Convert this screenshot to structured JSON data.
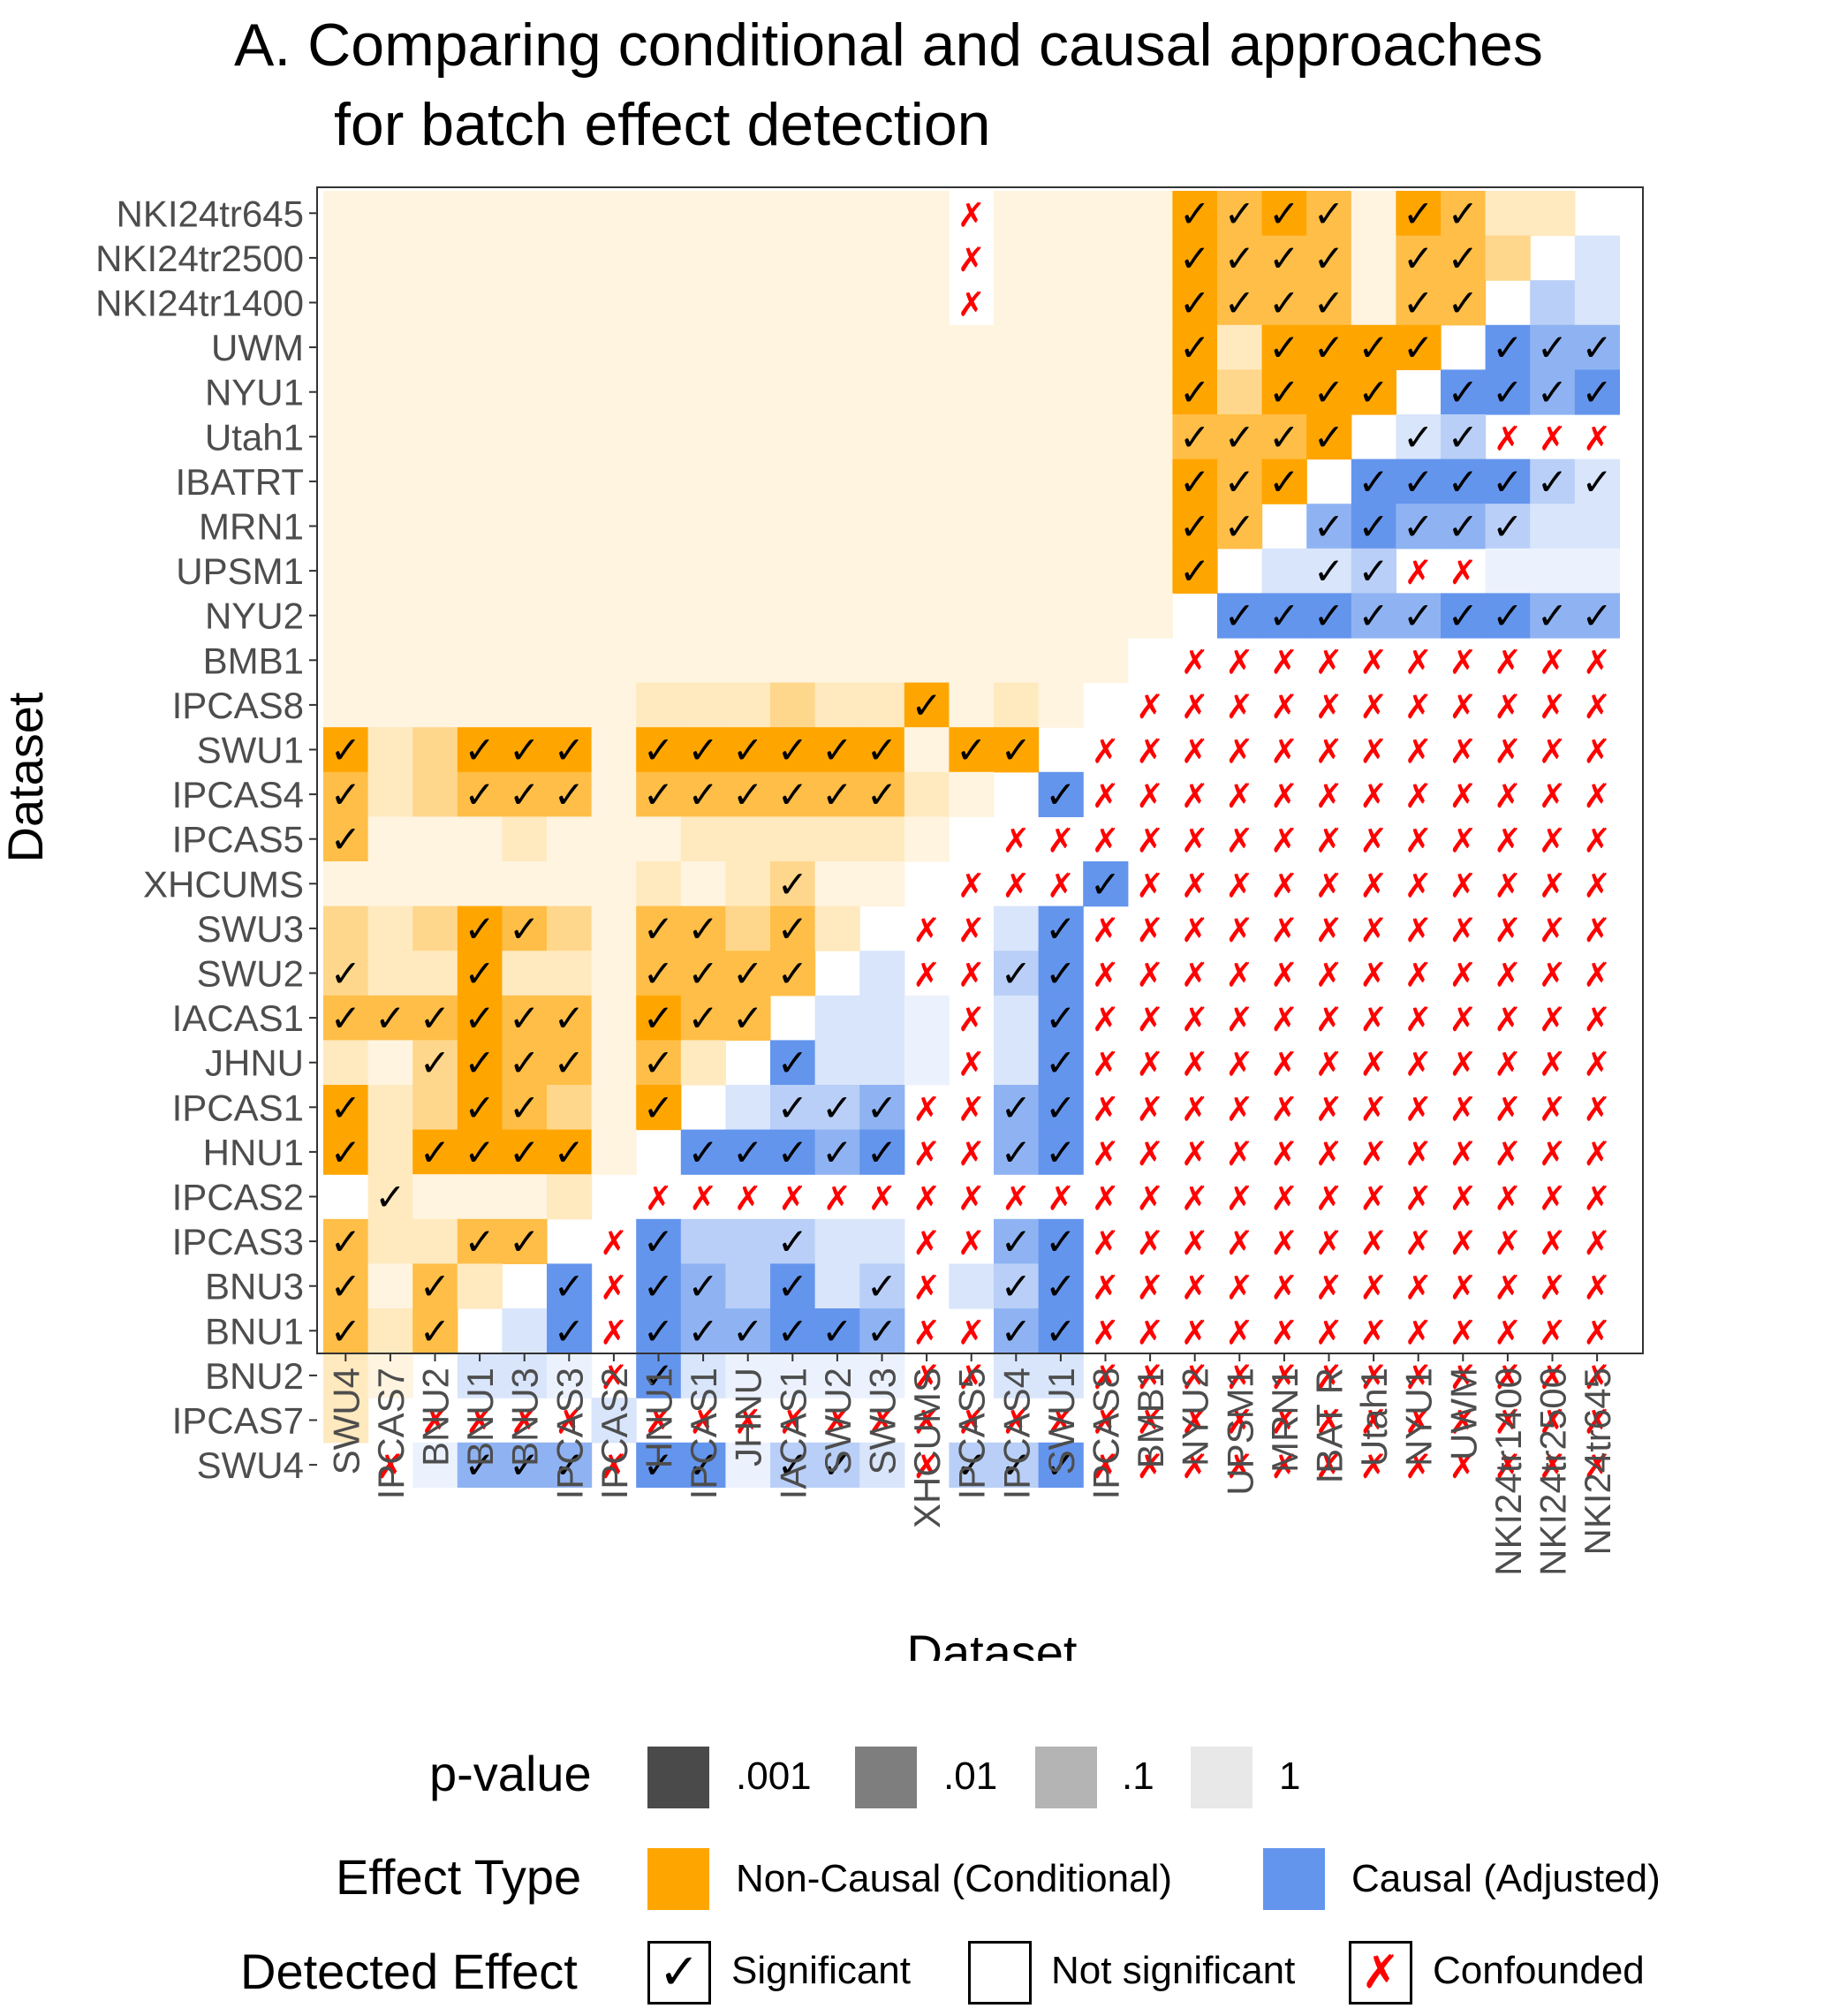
{
  "title": {
    "line1": "A. Comparing conditional and causal approaches",
    "line2": "for batch effect detection"
  },
  "chart_data": {
    "type": "heatmap",
    "xlabel": "Dataset",
    "ylabel": "Dataset",
    "x": [
      "SWU4",
      "IPCAS7",
      "BNU2",
      "BNU1",
      "BNU3",
      "IPCAS3",
      "IPCAS2",
      "HNU1",
      "IPCAS1",
      "JHNU",
      "IACAS1",
      "SWU2",
      "SWU3",
      "XHCUMS",
      "IPCAS5",
      "IPCAS4",
      "SWU1",
      "IPCAS8",
      "BMB1",
      "NYU2",
      "UPSM1",
      "MRN1",
      "IBAT R",
      "Utah1",
      "NYU1",
      "UWM",
      "NKI24tr1400",
      "NKI24tr2500",
      "NKI24tr645"
    ],
    "y": [
      "NKI24tr645",
      "NKI24tr2500",
      "NKI24tr1400",
      "UWM",
      "NYU1",
      "Utah1",
      "IBATRT",
      "MRN1",
      "UPSM1",
      "NYU2",
      "BMB1",
      "IPCAS8",
      "SWU1",
      "IPCAS4",
      "IPCAS5",
      "XHCUMS",
      "SWU3",
      "SWU2",
      "IACAS1",
      "JHNU",
      "IPCAS1",
      "HNU1",
      "IPCAS2",
      "IPCAS3",
      "BNU3",
      "BNU1",
      "BNU2",
      "IPCAS7",
      "SWU4"
    ],
    "grid_note": "Rows listed top to bottom; columns left to right. Cell codes: 'O'/'B' = orange (Non-Causal, Conditional) / blue (Causal, Adjusted) effect type; digit 0-4 = shade from p-value (4 darkest, p<=.001; 0 palest); trailing 'v' = significant check mark; 'x' = confounded mark; '-' = no fill.",
    "cells": [
      [
        "O0",
        "O0",
        "O0",
        "O0",
        "O0",
        "O0",
        "O0",
        "O0",
        "O0",
        "O0",
        "O0",
        "O0",
        "O0",
        "O0",
        "-x",
        "O0",
        "O0",
        "O0",
        "O0",
        "O4v",
        "O3v",
        "O4v",
        "O3v",
        "O0",
        "O4v",
        "O3v",
        "O1",
        "O1",
        "-"
      ],
      [
        "O0",
        "O0",
        "O0",
        "O0",
        "O0",
        "O0",
        "O0",
        "O0",
        "O0",
        "O0",
        "O0",
        "O0",
        "O0",
        "O0",
        "-x",
        "O0",
        "O0",
        "O0",
        "O0",
        "O4v",
        "O3v",
        "O3v",
        "O3v",
        "O0",
        "O3v",
        "O3v",
        "O2",
        "-",
        "B1"
      ],
      [
        "O0",
        "O0",
        "O0",
        "O0",
        "O0",
        "O0",
        "O0",
        "O0",
        "O0",
        "O0",
        "O0",
        "O0",
        "O0",
        "O0",
        "-x",
        "O0",
        "O0",
        "O0",
        "O0",
        "O4v",
        "O3v",
        "O3v",
        "O3v",
        "O0",
        "O3v",
        "O3v",
        "-",
        "B2",
        "B1"
      ],
      [
        "O0",
        "O0",
        "O0",
        "O0",
        "O0",
        "O0",
        "O0",
        "O0",
        "O0",
        "O0",
        "O0",
        "O0",
        "O0",
        "O0",
        "O0",
        "O0",
        "O0",
        "O0",
        "O0",
        "O4v",
        "O1",
        "O4v",
        "O4v",
        "O4v",
        "O4v",
        "-",
        "B4v",
        "B3v",
        "B3v"
      ],
      [
        "O0",
        "O0",
        "O0",
        "O0",
        "O0",
        "O0",
        "O0",
        "O0",
        "O0",
        "O0",
        "O0",
        "O0",
        "O0",
        "O0",
        "O0",
        "O0",
        "O0",
        "O0",
        "O0",
        "O4v",
        "O2",
        "O4v",
        "O4v",
        "O4v",
        "-",
        "B4v",
        "B4v",
        "B3v",
        "B4v"
      ],
      [
        "O0",
        "O0",
        "O0",
        "O0",
        "O0",
        "O0",
        "O0",
        "O0",
        "O0",
        "O0",
        "O0",
        "O0",
        "O0",
        "O0",
        "O0",
        "O0",
        "O0",
        "O0",
        "O0",
        "O3v",
        "O3v",
        "O3v",
        "O4v",
        "-",
        "B1v",
        "B2v",
        "-x",
        "-x",
        "-x"
      ],
      [
        "O0",
        "O0",
        "O0",
        "O0",
        "O0",
        "O0",
        "O0",
        "O0",
        "O0",
        "O0",
        "O0",
        "O0",
        "O0",
        "O0",
        "O0",
        "O0",
        "O0",
        "O0",
        "O0",
        "O4v",
        "O3v",
        "O4v",
        "-",
        "B4v",
        "B4v",
        "B4v",
        "B4v",
        "B2v",
        "B1v"
      ],
      [
        "O0",
        "O0",
        "O0",
        "O0",
        "O0",
        "O0",
        "O0",
        "O0",
        "O0",
        "O0",
        "O0",
        "O0",
        "O0",
        "O0",
        "O0",
        "O0",
        "O0",
        "O0",
        "O0",
        "O4v",
        "O3v",
        "-",
        "B3v",
        "B4v",
        "B3v",
        "B3v",
        "B2v",
        "B1",
        "B1"
      ],
      [
        "O0",
        "O0",
        "O0",
        "O0",
        "O0",
        "O0",
        "O0",
        "O0",
        "O0",
        "O0",
        "O0",
        "O0",
        "O0",
        "O0",
        "O0",
        "O0",
        "O0",
        "O0",
        "O0",
        "O4v",
        "-",
        "B1",
        "B1v",
        "B2v",
        "-x",
        "-x",
        "B0",
        "B0",
        "B0"
      ],
      [
        "O0",
        "O0",
        "O0",
        "O0",
        "O0",
        "O0",
        "O0",
        "O0",
        "O0",
        "O0",
        "O0",
        "O0",
        "O0",
        "O0",
        "O0",
        "O0",
        "O0",
        "O0",
        "O0",
        "-",
        "B4v",
        "B4v",
        "B4v",
        "B3v",
        "B3v",
        "B4v",
        "B4v",
        "B3v",
        "B3v"
      ],
      [
        "O0",
        "O0",
        "O0",
        "O0",
        "O0",
        "O0",
        "O0",
        "O0",
        "O0",
        "O0",
        "O0",
        "O0",
        "O0",
        "O0",
        "O0",
        "O0",
        "O0",
        "O0",
        "-",
        "-x",
        "-x",
        "-x",
        "-x",
        "-x",
        "-x",
        "-x",
        "-x",
        "-x",
        "-x"
      ],
      [
        "O0",
        "O0",
        "O0",
        "O0",
        "O0",
        "O0",
        "O0",
        "O1",
        "O1",
        "O1",
        "O2",
        "O1",
        "O1",
        "O4v",
        "O0",
        "O1",
        "O0",
        "-",
        "-x",
        "-x",
        "-x",
        "-x",
        "-x",
        "-x",
        "-x",
        "-x",
        "-x",
        "-x",
        "-x"
      ],
      [
        "O4v",
        "O1",
        "O2",
        "O4v",
        "O4v",
        "O4v",
        "O0",
        "O4v",
        "O4v",
        "O4v",
        "O4v",
        "O4v",
        "O4v",
        "O0",
        "O4v",
        "O4v",
        "-",
        "-x",
        "-x",
        "-x",
        "-x",
        "-x",
        "-x",
        "-x",
        "-x",
        "-x",
        "-x",
        "-x",
        "-x"
      ],
      [
        "O3v",
        "O1",
        "O2",
        "O3v",
        "O3v",
        "O3v",
        "O0",
        "O3v",
        "O3v",
        "O3v",
        "O3v",
        "O3v",
        "O3v",
        "O1",
        "O0",
        "-",
        "B4v",
        "-x",
        "-x",
        "-x",
        "-x",
        "-x",
        "-x",
        "-x",
        "-x",
        "-x",
        "-x",
        "-x",
        "-x"
      ],
      [
        "O3v",
        "O0",
        "O0",
        "O0",
        "O1",
        "O0",
        "O0",
        "O0",
        "O1",
        "O1",
        "O1",
        "O1",
        "O1",
        "O0",
        "-",
        "-x",
        "-x",
        "-x",
        "-x",
        "-x",
        "-x",
        "-x",
        "-x",
        "-x",
        "-x",
        "-x",
        "-x",
        "-x",
        "-x"
      ],
      [
        "O0",
        "O0",
        "O0",
        "O0",
        "O0",
        "O0",
        "O0",
        "O1",
        "O0",
        "O1",
        "O2v",
        "O0",
        "O0",
        "-",
        "-x",
        "-x",
        "-x",
        "B4v",
        "-x",
        "-x",
        "-x",
        "-x",
        "-x",
        "-x",
        "-x",
        "-x",
        "-x",
        "-x",
        "-x"
      ],
      [
        "O2",
        "O1",
        "O2",
        "O4v",
        "O3v",
        "O2",
        "O0",
        "O3v",
        "O3v",
        "O2",
        "O3v",
        "O1",
        "-",
        "-x",
        "-x",
        "B1",
        "B4v",
        "-x",
        "-x",
        "-x",
        "-x",
        "-x",
        "-x",
        "-x",
        "-x",
        "-x",
        "-x",
        "-x",
        "-x"
      ],
      [
        "O2v",
        "O1",
        "O1",
        "O4v",
        "O1",
        "O1",
        "O0",
        "O3v",
        "O3v",
        "O3v",
        "O3v",
        "-",
        "B1",
        "-x",
        "-x",
        "B2v",
        "B4v",
        "-x",
        "-x",
        "-x",
        "-x",
        "-x",
        "-x",
        "-x",
        "-x",
        "-x",
        "-x",
        "-x",
        "-x"
      ],
      [
        "O3v",
        "O3v",
        "O3v",
        "O4v",
        "O3v",
        "O3v",
        "O0",
        "O4v",
        "O3v",
        "O3v",
        "-",
        "B1",
        "B1",
        "B0",
        "-x",
        "B1",
        "B4v",
        "-x",
        "-x",
        "-x",
        "-x",
        "-x",
        "-x",
        "-x",
        "-x",
        "-x",
        "-x",
        "-x",
        "-x"
      ],
      [
        "O1",
        "O0",
        "O2v",
        "O4v",
        "O3v",
        "O3v",
        "O0",
        "O3v",
        "O1",
        "-",
        "B4v",
        "B1",
        "B1",
        "B0",
        "-x",
        "B1",
        "B4v",
        "-x",
        "-x",
        "-x",
        "-x",
        "-x",
        "-x",
        "-x",
        "-x",
        "-x",
        "-x",
        "-x",
        "-x"
      ],
      [
        "O4v",
        "O1",
        "O2",
        "O4v",
        "O3v",
        "O2",
        "O0",
        "O4v",
        "-",
        "B1",
        "B2v",
        "B2v",
        "B3v",
        "-x",
        "-x",
        "B3v",
        "B4v",
        "-x",
        "-x",
        "-x",
        "-x",
        "-x",
        "-x",
        "-x",
        "-x",
        "-x",
        "-x",
        "-x",
        "-x"
      ],
      [
        "O4v",
        "O1",
        "O4v",
        "O4v",
        "O4v",
        "O4v",
        "O0",
        "-",
        "B4v",
        "B4v",
        "B4v",
        "B3v",
        "B4v",
        "-x",
        "-x",
        "B3v",
        "B4v",
        "-x",
        "-x",
        "-x",
        "-x",
        "-x",
        "-x",
        "-x",
        "-x",
        "-x",
        "-x",
        "-x",
        "-x"
      ],
      [
        "-",
        "O1v",
        "O0",
        "O0",
        "O0",
        "O1",
        "-",
        "-x",
        "-x",
        "-x",
        "-x",
        "-x",
        "-x",
        "-x",
        "-x",
        "-x",
        "-x",
        "-x",
        "-x",
        "-x",
        "-x",
        "-x",
        "-x",
        "-x",
        "-x",
        "-x",
        "-x",
        "-x",
        "-x"
      ],
      [
        "O3v",
        "O1",
        "O1",
        "O3v",
        "O3v",
        "-",
        "-x",
        "B4v",
        "B2",
        "B2",
        "B2v",
        "B1",
        "B1",
        "-x",
        "-x",
        "B3v",
        "B4v",
        "-x",
        "-x",
        "-x",
        "-x",
        "-x",
        "-x",
        "-x",
        "-x",
        "-x",
        "-x",
        "-x",
        "-x"
      ],
      [
        "O3v",
        "O0",
        "O3v",
        "O1",
        "-",
        "B4v",
        "-x",
        "B4v",
        "B3v",
        "B2",
        "B4v",
        "B1",
        "B2v",
        "-x",
        "B1",
        "B2v",
        "B4v",
        "-x",
        "-x",
        "-x",
        "-x",
        "-x",
        "-x",
        "-x",
        "-x",
        "-x",
        "-x",
        "-x",
        "-x"
      ],
      [
        "O3v",
        "O1",
        "O3v",
        "-",
        "B1",
        "B4v",
        "-x",
        "B4v",
        "B3v",
        "B3v",
        "B4v",
        "B4v",
        "B3v",
        "-x",
        "-x",
        "B3v",
        "B4v",
        "-x",
        "-x",
        "-x",
        "-x",
        "-x",
        "-x",
        "-x",
        "-x",
        "-x",
        "-x",
        "-x",
        "-x"
      ],
      [
        "O1",
        "O0",
        "-",
        "B1",
        "B1",
        "B0",
        "-x",
        "B4v",
        "B1",
        "B0",
        "B0",
        "B0",
        "B0",
        "-x",
        "-x",
        "B1",
        "B1",
        "-x",
        "-x",
        "-x",
        "-x",
        "-x",
        "-x",
        "-x",
        "-x",
        "-x",
        "-x",
        "-x",
        "-x"
      ],
      [
        "O1",
        "-",
        "-x",
        "-x",
        "-x",
        "-x",
        "B1",
        "-x",
        "-x",
        "-x",
        "-x",
        "-x",
        "-x",
        "-x",
        "-x",
        "-x",
        "-x",
        "-x",
        "-x",
        "-x",
        "-x",
        "-x",
        "-x",
        "-x",
        "-x",
        "-x",
        "-x",
        "-x",
        "-x"
      ],
      [
        "-",
        "-x",
        "B0",
        "B3v",
        "B3v",
        "B3v",
        "-x",
        "B4v",
        "B4v",
        "B0",
        "B2v",
        "B2v",
        "B1",
        "-x",
        "B2v",
        "B2v",
        "B4v",
        "-x",
        "-x",
        "-x",
        "-x",
        "-x",
        "-x",
        "-x",
        "-x",
        "-x",
        "-x",
        "-x",
        "-x"
      ]
    ]
  },
  "legend": {
    "pvalue": {
      "title": "p-value",
      "items": [
        ".001",
        ".01",
        ".1",
        "1"
      ]
    },
    "effect_type": {
      "title": "Effect Type",
      "items": [
        "Non-Causal (Conditional)",
        "Causal (Adjusted)"
      ]
    },
    "detected": {
      "title": "Detected Effect",
      "items": [
        "Significant",
        "Not significant",
        "Confounded"
      ]
    }
  },
  "colors": {
    "orange": "#FFA500",
    "blue": "#6495ED",
    "check": "#000000",
    "cross": "#FF0000",
    "pvalue_greys": [
      "#4a4a4a",
      "#7e7e7e",
      "#b4b4b4",
      "#e8e8e8"
    ],
    "panel_border": "#333333",
    "tick_text": "#4d4d4d"
  }
}
